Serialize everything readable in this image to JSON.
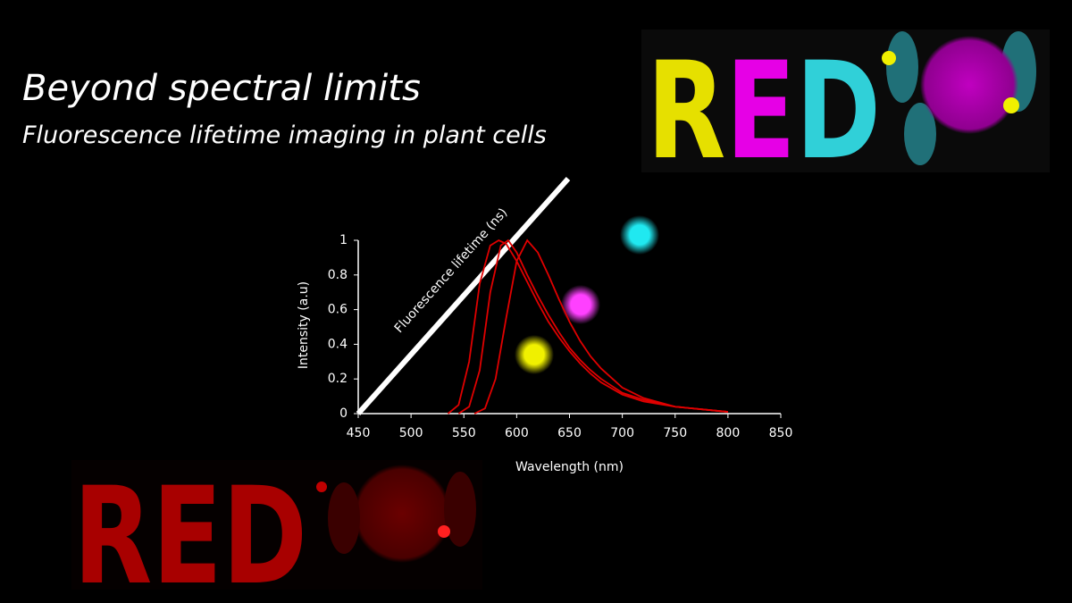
{
  "slide": {
    "title": "Beyond spectral limits",
    "subtitle": "Fluorescence lifetime imaging in plant cells",
    "images": [
      {
        "text": "RED"
      },
      {
        "text": "RED"
      }
    ]
  },
  "chart_data": {
    "type": "line",
    "x_label": "Wavelength (nm)",
    "y_label": "Intensity (a.u)",
    "lifetime_axis_label": "Fluorescence lifetime (ns)",
    "xlim": [
      450,
      850
    ],
    "xticks": [
      450,
      500,
      550,
      600,
      650,
      700,
      750,
      800,
      850
    ],
    "ylim": [
      0,
      1
    ],
    "yticks": [
      0,
      0.2,
      0.4,
      0.6,
      0.8,
      1
    ],
    "series": [
      {
        "color": "#e00000",
        "x": [
          535,
          545,
          555,
          565,
          575,
          583,
          590,
          600,
          610,
          620,
          630,
          640,
          650,
          660,
          670,
          680,
          700,
          720,
          750,
          800
        ],
        "values": [
          0,
          0.05,
          0.3,
          0.75,
          0.97,
          1,
          0.98,
          0.88,
          0.76,
          0.64,
          0.53,
          0.44,
          0.36,
          0.29,
          0.23,
          0.18,
          0.11,
          0.07,
          0.04,
          0.01
        ]
      },
      {
        "color": "#e00000",
        "x": [
          545,
          555,
          565,
          575,
          585,
          592,
          600,
          610,
          620,
          630,
          640,
          650,
          660,
          670,
          680,
          700,
          720,
          750,
          800
        ],
        "values": [
          0,
          0.04,
          0.25,
          0.7,
          0.97,
          1,
          0.93,
          0.8,
          0.68,
          0.57,
          0.47,
          0.38,
          0.31,
          0.25,
          0.2,
          0.12,
          0.08,
          0.04,
          0.01
        ]
      },
      {
        "color": "#e00000",
        "x": [
          560,
          570,
          580,
          590,
          600,
          610,
          620,
          630,
          640,
          650,
          660,
          670,
          680,
          700,
          720,
          750,
          800
        ],
        "values": [
          0,
          0.03,
          0.2,
          0.55,
          0.88,
          1,
          0.93,
          0.8,
          0.66,
          0.53,
          0.42,
          0.33,
          0.26,
          0.15,
          0.09,
          0.04,
          0.01
        ]
      }
    ]
  }
}
